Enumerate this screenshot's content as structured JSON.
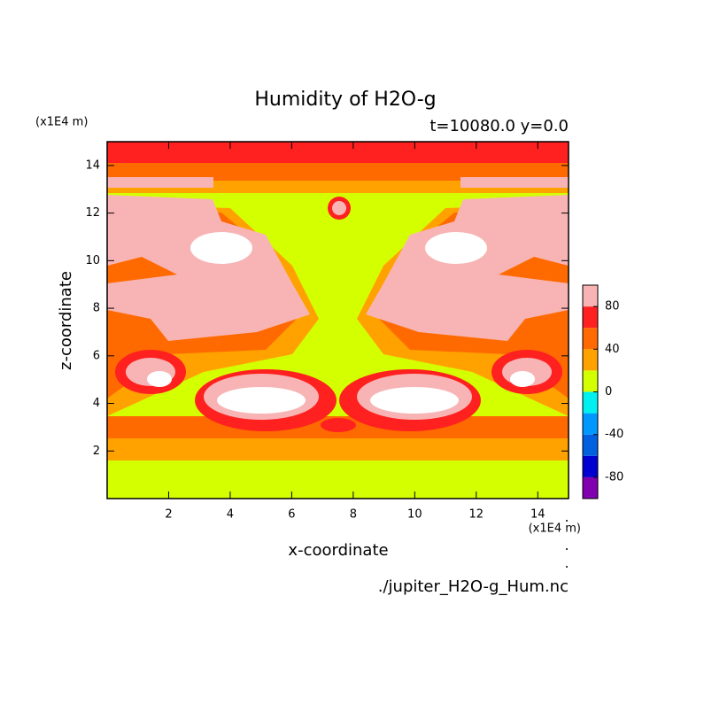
{
  "chart_data": {
    "type": "contour",
    "title": "Humidity of H2O-g",
    "subtitle": "t=10080.0 y=0.0",
    "xlabel": "x-coordinate",
    "ylabel": "z-coordinate",
    "xunit": "(x1E4 m)",
    "yunit": "(x1E4 m)",
    "source": "./jupiter_H2O-g_Hum.nc",
    "xlim": [
      0,
      15
    ],
    "ylim": [
      0,
      15
    ],
    "xticks": [
      2,
      4,
      6,
      8,
      10,
      12,
      14
    ],
    "yticks": [
      2,
      4,
      6,
      8,
      10,
      12,
      14
    ],
    "levels": [
      -100,
      -80,
      -60,
      -40,
      -20,
      0,
      20,
      40,
      60,
      80,
      100
    ],
    "colors": [
      "#8000b0",
      "#0000d0",
      "#0060e0",
      "#0098ff",
      "#00f0f0",
      "#d4ff00",
      "#ffa200",
      "#ff6a00",
      "#ff2020",
      "#f8b4b4"
    ],
    "cticks": [
      -80,
      -40,
      0,
      40,
      80
    ]
  }
}
